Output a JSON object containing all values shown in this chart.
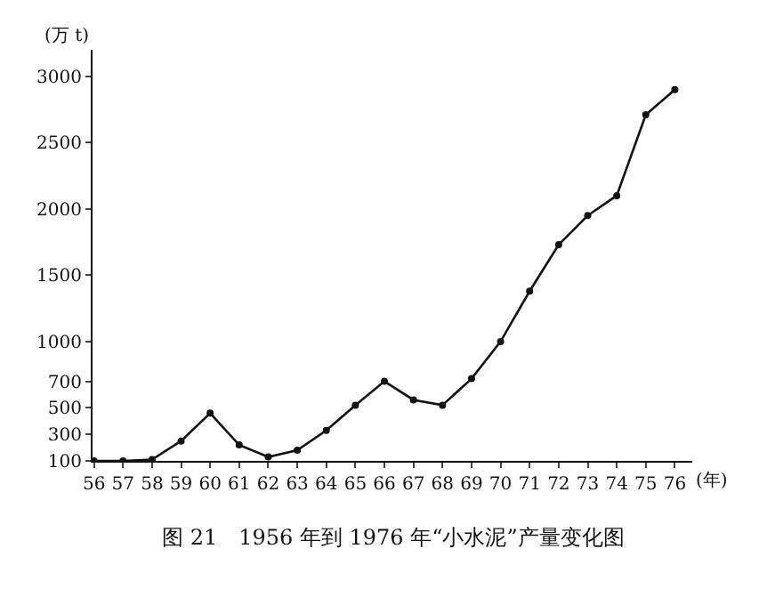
{
  "chart_data": {
    "type": "line",
    "title": "图 21　1956 年到 1976 年“小水泥”产量变化图",
    "xlabel": "(年)",
    "ylabel": "(万 t)",
    "categories": [
      "56",
      "57",
      "58",
      "59",
      "60",
      "61",
      "62",
      "63",
      "64",
      "65",
      "66",
      "67",
      "68",
      "69",
      "70",
      "71",
      "72",
      "73",
      "74",
      "75",
      "76"
    ],
    "series": [
      {
        "color": "#111111",
        "values": [
          100,
          100,
          110,
          250,
          460,
          220,
          130,
          180,
          330,
          520,
          700,
          560,
          520,
          720,
          1000,
          1380,
          1730,
          1950,
          2100,
          2710,
          2900
        ]
      }
    ],
    "ylim": [
      100,
      3200
    ],
    "yticks": [
      100,
      300,
      500,
      700,
      1000,
      1500,
      2000,
      2500,
      3000
    ],
    "marker": "circle",
    "line_style": "solid"
  }
}
